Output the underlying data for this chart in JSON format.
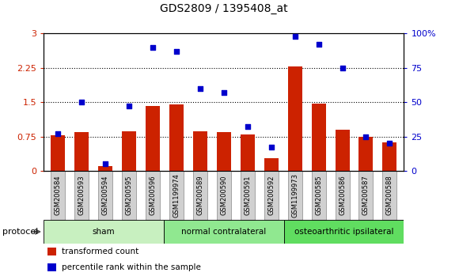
{
  "title": "GDS2809 / 1395408_at",
  "categories": [
    "GSM200584",
    "GSM200593",
    "GSM200594",
    "GSM200595",
    "GSM200596",
    "GSM1199974",
    "GSM200589",
    "GSM200590",
    "GSM200591",
    "GSM200592",
    "GSM1199973",
    "GSM200585",
    "GSM200586",
    "GSM200587",
    "GSM200588"
  ],
  "red_values": [
    0.78,
    0.85,
    0.1,
    0.87,
    1.42,
    1.45,
    0.87,
    0.85,
    0.8,
    0.27,
    2.28,
    1.47,
    0.9,
    0.75,
    0.63
  ],
  "blue_values": [
    27,
    50,
    5,
    47,
    90,
    87,
    60,
    57,
    32,
    17,
    98,
    92,
    75,
    25,
    20
  ],
  "groups": [
    {
      "label": "sham",
      "start": 0,
      "end": 5,
      "color": "#c8f0c0"
    },
    {
      "label": "normal contralateral",
      "start": 5,
      "end": 10,
      "color": "#90e890"
    },
    {
      "label": "osteoarthritic ipsilateral",
      "start": 10,
      "end": 15,
      "color": "#60dd60"
    }
  ],
  "left_ylim": [
    0,
    3.0
  ],
  "right_ylim": [
    0,
    100
  ],
  "left_yticks": [
    0,
    0.75,
    1.5,
    2.25,
    3.0
  ],
  "left_yticklabels": [
    "0",
    "0.75",
    "1.5",
    "2.25",
    "3"
  ],
  "right_yticks": [
    0,
    25,
    50,
    75,
    100
  ],
  "right_yticklabels": [
    "0",
    "25",
    "50",
    "75",
    "100%"
  ],
  "red_color": "#cc2200",
  "blue_color": "#0000cc",
  "bar_width": 0.6,
  "protocol_label": "protocol",
  "legend_items": [
    {
      "color": "#cc2200",
      "label": "transformed count"
    },
    {
      "color": "#0000cc",
      "label": "percentile rank within the sample"
    }
  ],
  "dotted_lines": [
    0.75,
    1.5,
    2.25
  ],
  "xtick_bg": "#d0d0d0",
  "plot_bg": "#ffffff",
  "fig_bg": "#ffffff"
}
